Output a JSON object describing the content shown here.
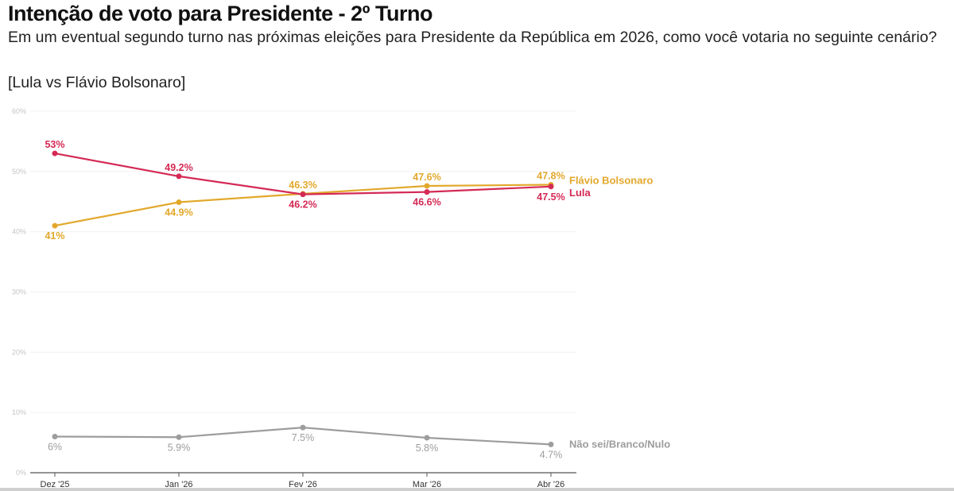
{
  "chart_data": {
    "type": "line",
    "title": "Intenção de voto para Presidente - 2º Turno",
    "subtitle": "Em um eventual segundo turno nas próximas eleições para Presidente da República em 2026, como você votaria no seguinte cenário?",
    "scenario": "[Lula vs Flávio Bolsonaro]",
    "categories": [
      "Dez '25",
      "Jan '26",
      "Fev '26",
      "Mar '26",
      "Abr '26"
    ],
    "ylim": [
      0,
      60
    ],
    "yticks": [
      0,
      10,
      20,
      30,
      40,
      50,
      60
    ],
    "ytick_labels": [
      "0%",
      "10%",
      "20%",
      "30%",
      "40%",
      "50%",
      "60%"
    ],
    "grid": true,
    "series": [
      {
        "name": "Lula",
        "color": "#d42a55",
        "values": [
          53,
          49.2,
          46.2,
          46.6,
          47.5
        ],
        "labels": [
          "53%",
          "49.2%",
          "46.2%",
          "46.6%",
          "47.5%"
        ],
        "label_pos": [
          "above",
          "above",
          "below",
          "below",
          "below"
        ]
      },
      {
        "name": "Flávio Bolsonaro",
        "color": "#e2a82c",
        "values": [
          41,
          44.9,
          46.3,
          47.6,
          47.8
        ],
        "labels": [
          "41%",
          "44.9%",
          "46.3%",
          "47.6%",
          "47.8%"
        ],
        "label_pos": [
          "below",
          "below",
          "above",
          "above",
          "above"
        ]
      },
      {
        "name": "Não sei/Branco/Nulo",
        "color": "#9d9d9d",
        "values": [
          6,
          5.9,
          7.5,
          5.8,
          4.7
        ],
        "labels": [
          "6%",
          "5.9%",
          "7.5%",
          "5.8%",
          "4.7%"
        ],
        "label_pos": [
          "below",
          "below",
          "below",
          "below",
          "below"
        ]
      }
    ]
  }
}
